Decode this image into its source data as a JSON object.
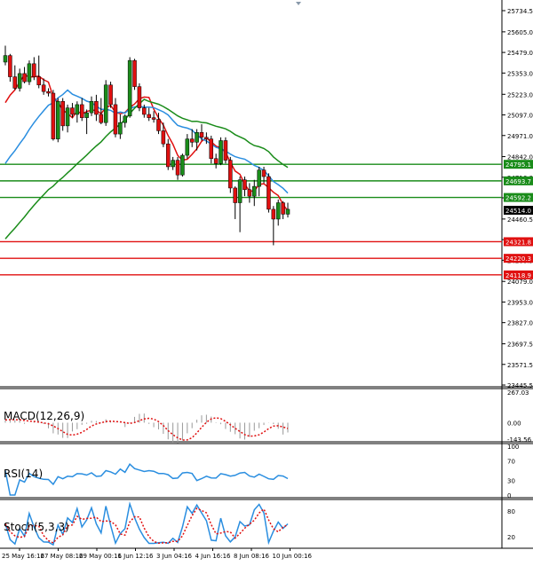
{
  "chart_data": [
    {
      "type": "candlestick",
      "panel": "price",
      "ylim": [
        23445.5,
        25734.5
      ],
      "y_ticks": [
        "25734.5",
        "25605.0",
        "25479.0",
        "25353.0",
        "25223.0",
        "25097.0",
        "24971.0",
        "24842.0",
        "24716.0",
        "24590.0",
        "24460.5",
        "24334.5",
        "24208.5",
        "24079.0",
        "23953.0",
        "23827.0",
        "23697.5",
        "23571.5",
        "23445.5"
      ],
      "levels": [
        {
          "label": "24795.1",
          "value": 24795.1,
          "color": "#1a8c1a"
        },
        {
          "label": "24693.7",
          "value": 24693.7,
          "color": "#1a8c1a"
        },
        {
          "label": "24592.2",
          "value": 24592.2,
          "color": "#1a8c1a"
        },
        {
          "label": "24514.0",
          "value": 24514.0,
          "color": "#000000"
        },
        {
          "label": "24321.8",
          "value": 24321.8,
          "color": "#e01010"
        },
        {
          "label": "24220.3",
          "value": 24220.3,
          "color": "#e01010"
        },
        {
          "label": "24118.9",
          "value": 24118.9,
          "color": "#e01010"
        }
      ],
      "candles": [
        [
          25420,
          25520,
          25400,
          25460
        ],
        [
          25460,
          25470,
          25300,
          25330
        ],
        [
          25330,
          25400,
          25250,
          25260
        ],
        [
          25260,
          25380,
          25240,
          25350
        ],
        [
          25350,
          25390,
          25290,
          25300
        ],
        [
          25300,
          25430,
          25280,
          25410
        ],
        [
          25410,
          25450,
          25310,
          25330
        ],
        [
          25330,
          25460,
          25260,
          25280
        ],
        [
          25280,
          25320,
          25220,
          25240
        ],
        [
          25240,
          25260,
          25210,
          25230
        ],
        [
          25230,
          25250,
          24940,
          24950
        ],
        [
          24950,
          25200,
          24930,
          25180
        ],
        [
          25180,
          25200,
          25000,
          25030
        ],
        [
          25030,
          25160,
          24990,
          25140
        ],
        [
          25140,
          25170,
          25080,
          25100
        ],
        [
          25100,
          25180,
          25050,
          25160
        ],
        [
          25160,
          25200,
          25060,
          25080
        ],
        [
          25080,
          25130,
          24980,
          25110
        ],
        [
          25110,
          25210,
          25090,
          25180
        ],
        [
          25180,
          25220,
          25060,
          25100
        ],
        [
          25100,
          25200,
          25040,
          25050
        ],
        [
          25050,
          25310,
          25030,
          25280
        ],
        [
          25280,
          25300,
          25140,
          25160
        ],
        [
          25160,
          25200,
          24960,
          24980
        ],
        [
          24980,
          25100,
          24950,
          25050
        ],
        [
          25050,
          25100,
          25020,
          25090
        ],
        [
          25090,
          25450,
          25080,
          25430
        ],
        [
          25430,
          25440,
          25250,
          25270
        ],
        [
          25270,
          25290,
          25120,
          25140
        ],
        [
          25140,
          25160,
          25080,
          25100
        ],
        [
          25100,
          25140,
          25060,
          25080
        ],
        [
          25080,
          25120,
          25050,
          25070
        ],
        [
          25070,
          25110,
          24980,
          25000
        ],
        [
          25000,
          25050,
          24900,
          24920
        ],
        [
          24920,
          24950,
          24760,
          24780
        ],
        [
          24780,
          24840,
          24760,
          24820
        ],
        [
          24820,
          24840,
          24700,
          24730
        ],
        [
          24730,
          24860,
          24720,
          24850
        ],
        [
          24850,
          24980,
          24830,
          24950
        ],
        [
          24950,
          25010,
          24900,
          24930
        ],
        [
          24930,
          25010,
          24880,
          24990
        ],
        [
          24990,
          25040,
          24940,
          24960
        ],
        [
          24960,
          24990,
          24920,
          24950
        ],
        [
          24950,
          24970,
          24800,
          24830
        ],
        [
          24830,
          24860,
          24770,
          24800
        ],
        [
          24800,
          24960,
          24790,
          24940
        ],
        [
          24940,
          24960,
          24800,
          24820
        ],
        [
          24820,
          24840,
          24620,
          24650
        ],
        [
          24650,
          24660,
          24460,
          24560
        ],
        [
          24560,
          24720,
          24380,
          24700
        ],
        [
          24700,
          24720,
          24600,
          24640
        ],
        [
          24640,
          24680,
          24560,
          24600
        ],
        [
          24600,
          24700,
          24540,
          24660
        ],
        [
          24660,
          24780,
          24600,
          24760
        ],
        [
          24760,
          24780,
          24680,
          24720
        ],
        [
          24720,
          24740,
          24500,
          24520
        ],
        [
          24520,
          24540,
          24300,
          24460
        ],
        [
          24460,
          24580,
          24420,
          24560
        ],
        [
          24560,
          24570,
          24460,
          24490
        ],
        [
          24490,
          24560,
          24470,
          24520
        ]
      ]
    },
    {
      "type": "bar",
      "panel": "macd",
      "title": "MACD(12,26,9)",
      "y_ticks": [
        "267.03",
        "0.00",
        "-143.56"
      ],
      "ylim": [
        -143.56,
        267.03
      ]
    },
    {
      "type": "line",
      "panel": "rsi",
      "title": "RSI(14)",
      "y_ticks": [
        "100",
        "70",
        "30",
        "0"
      ],
      "ylim": [
        0,
        100
      ]
    },
    {
      "type": "line",
      "panel": "stoch",
      "title": "Stoch(5,3,3)",
      "y_ticks": [
        "80",
        "20"
      ],
      "ylim": [
        0,
        100
      ]
    }
  ],
  "x_labels": [
    "25 May 16:16",
    "27 May 08:16",
    "29 May 00:16",
    "1 Jun 12:16",
    "3 Jun 04:16",
    "4 Jun 16:16",
    "8 Jun 08:16",
    "10 Jun 00:16"
  ],
  "colors": {
    "bull": "#1a8c1a",
    "bear": "#e01010",
    "ma_fast": "#e01010",
    "ma_mid": "#2a8ee0",
    "ma_slow": "#1a8c1a",
    "rsi": "#2a8ee0",
    "stoch_main": "#2a8ee0",
    "stoch_signal": "#e01010",
    "level_green": "#1a8c1a",
    "level_red": "#e01010"
  }
}
